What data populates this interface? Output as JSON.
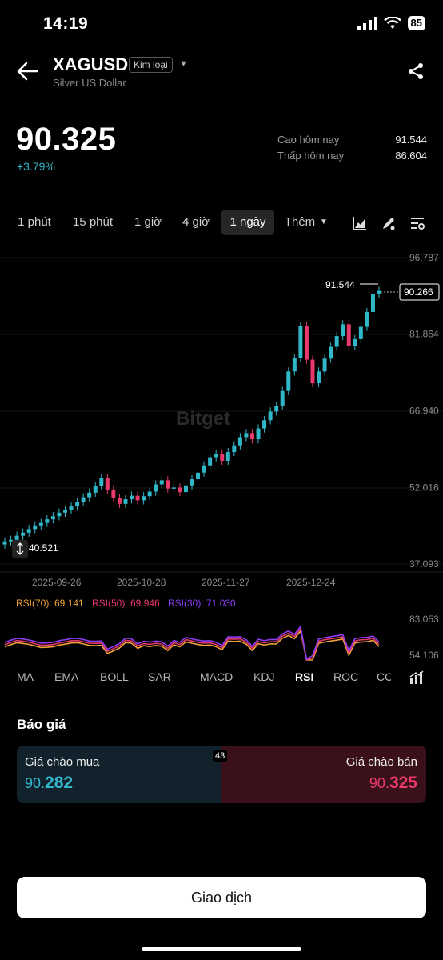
{
  "status": {
    "time": "14:19",
    "battery": "85"
  },
  "header": {
    "symbol": "XAGUSD",
    "badge": "Kim loại",
    "subtitle": "Silver US Dollar"
  },
  "quote": {
    "price": "90.325",
    "change": "+3.79%",
    "high_label": "Cao hôm nay",
    "high_value": "91.544",
    "low_label": "Thấp hôm nay",
    "low_value": "86.604"
  },
  "timeframes": [
    "1 phút",
    "15 phút",
    "1 giờ",
    "4 giờ",
    "1 ngày",
    "Thêm"
  ],
  "active_timeframe": "1 ngày",
  "chart": {
    "watermark": "Bitget",
    "price_axis": [
      "96.787",
      "81.864",
      "66.940",
      "52.016",
      "37.093"
    ],
    "date_axis": [
      "2025-09-26",
      "2025-10-28",
      "2025-11-27",
      "2025-12-24"
    ],
    "high_marker": "91.544",
    "current_price_tag": "90.266",
    "low_marker": "40.521",
    "rsi_legend": [
      {
        "label": "RSI(70): 69.141",
        "color": "#f0a23a"
      },
      {
        "label": "RSI(50): 69.946",
        "color": "#e8396c"
      },
      {
        "label": "RSI(30): 71.030",
        "color": "#8a3df0"
      }
    ],
    "rsi_axis": [
      "83.053",
      "54.106"
    ],
    "up_color": "#30b7c8",
    "down_color": "#e8396c"
  },
  "chart_data": {
    "type": "candlestick",
    "title": "",
    "y_ticks": [
      96.787,
      81.864,
      66.94,
      52.016,
      37.093
    ],
    "x_ticks": [
      "2025-09-26",
      "2025-10-28",
      "2025-11-27",
      "2025-12-24"
    ],
    "ylim": [
      37.093,
      96.787
    ],
    "close_approx": [
      41.5,
      41.8,
      42.6,
      43.2,
      43.9,
      44.6,
      45.1,
      45.8,
      46.4,
      47.1,
      47.6,
      48.3,
      49.2,
      50.1,
      51.0,
      52.3,
      53.8,
      51.6,
      49.9,
      48.8,
      49.7,
      50.4,
      49.5,
      50.3,
      51.2,
      52.6,
      53.4,
      51.8,
      52.0,
      51.1,
      52.4,
      53.6,
      54.9,
      56.3,
      57.9,
      58.5,
      57.2,
      58.9,
      60.2,
      61.8,
      62.6,
      61.4,
      63.5,
      65.1,
      66.8,
      67.9,
      70.8,
      74.6,
      77.2,
      83.5,
      76.9,
      72.3,
      74.6,
      77.1,
      79.4,
      81.5,
      83.8,
      79.6,
      80.9,
      83.3,
      86.2,
      89.7,
      90.3
    ],
    "rsi": {
      "RSI(70)": 69.141,
      "RSI(50)": 69.946,
      "RSI(30)": 71.03
    }
  },
  "indicators": [
    "MA",
    "EMA",
    "BOLL",
    "SAR",
    "MACD",
    "KDJ",
    "RSI",
    "ROC",
    "CC"
  ],
  "active_indicator": "RSI",
  "quote_section": {
    "title": "Báo giá",
    "bid_label": "Giá chào mua",
    "bid_price_prefix": "90.",
    "bid_price_suffix": "282",
    "ask_label": "Giá chào bán",
    "ask_price_prefix": "90.",
    "ask_price_suffix": "325",
    "spread": "43"
  },
  "trade_button": "Giao dịch"
}
